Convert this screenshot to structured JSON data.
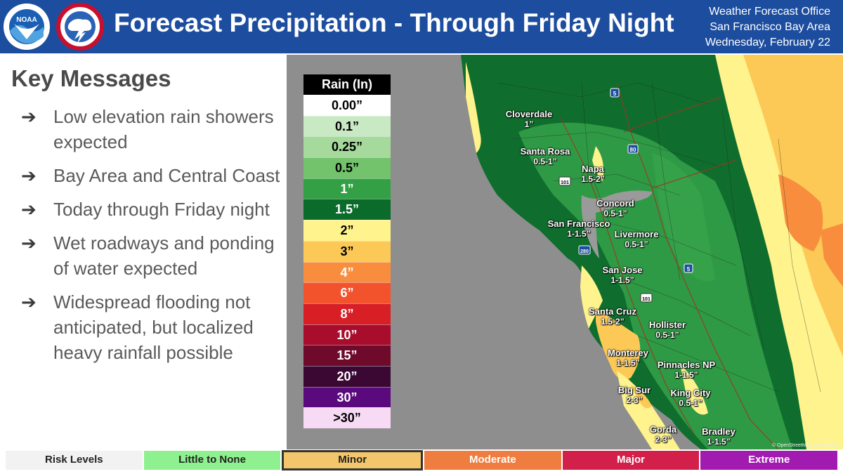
{
  "header": {
    "title": "Forecast Precipitation - Through Friday Night",
    "office_line1": "Weather Forecast Office",
    "office_line2": "San Francisco Bay Area",
    "date": "Wednesday, February 22",
    "background_color": "#1d4d9e",
    "logos": [
      "noaa-logo",
      "national-weather-service-logo"
    ]
  },
  "key_messages": {
    "title": "Key Messages",
    "bullet_icon": "right-arrow-icon",
    "items": [
      "Low elevation rain showers expected",
      "Bay Area and Central Coast",
      "Today through Friday night",
      "Wet roadways and ponding of water expected",
      "Widespread flooding not anticipated, but localized heavy rainfall possible"
    ]
  },
  "legend": {
    "title": "Rain (In)",
    "rows": [
      {
        "label": "0.00”",
        "color": "#ffffff",
        "text_color": "#000000"
      },
      {
        "label": "0.1”",
        "color": "#c9e8c4",
        "text_color": "#000000"
      },
      {
        "label": "0.25”",
        "color": "#a6d99c",
        "text_color": "#000000"
      },
      {
        "label": "0.5”",
        "color": "#73c26c",
        "text_color": "#000000"
      },
      {
        "label": "1”",
        "color": "#34a046",
        "text_color": "#ffffff"
      },
      {
        "label": "1.5”",
        "color": "#0b6b2b",
        "text_color": "#ffffff"
      },
      {
        "label": "2”",
        "color": "#fff38d",
        "text_color": "#000000"
      },
      {
        "label": "3”",
        "color": "#fcc957",
        "text_color": "#000000"
      },
      {
        "label": "4”",
        "color": "#f88e3d",
        "text_color": "#ffffff"
      },
      {
        "label": "6”",
        "color": "#f2532d",
        "text_color": "#ffffff"
      },
      {
        "label": "8”",
        "color": "#d81f26",
        "text_color": "#ffffff"
      },
      {
        "label": "10”",
        "color": "#a80d2c",
        "text_color": "#ffffff"
      },
      {
        "label": "15”",
        "color": "#6f0a2b",
        "text_color": "#ffffff"
      },
      {
        "label": "20”",
        "color": "#3a0833",
        "text_color": "#ffffff"
      },
      {
        "label": "30”",
        "color": "#5b0a7e",
        "text_color": "#ffffff"
      },
      {
        "label": ">30”",
        "color": "#f7daf4",
        "text_color": "#000000"
      }
    ]
  },
  "map": {
    "cities": [
      {
        "name": "Cloverdale",
        "amount": "1”"
      },
      {
        "name": "Santa Rosa",
        "amount": "0.5-1”"
      },
      {
        "name": "Napa",
        "amount": "1.5-2”"
      },
      {
        "name": "Concord",
        "amount": "0.5-1”"
      },
      {
        "name": "San Francisco",
        "amount": "1-1.5”"
      },
      {
        "name": "Livermore",
        "amount": "0.5-1”"
      },
      {
        "name": "San Jose",
        "amount": "1-1.5”"
      },
      {
        "name": "Santa Cruz",
        "amount": "1.5-2”"
      },
      {
        "name": "Hollister",
        "amount": "0.5-1”"
      },
      {
        "name": "Monterey",
        "amount": "1-1.5”"
      },
      {
        "name": "Pinnacles NP",
        "amount": "1-1.5”"
      },
      {
        "name": "Big Sur",
        "amount": "2-3”"
      },
      {
        "name": "King City",
        "amount": "0.5-1”"
      },
      {
        "name": "Gorda",
        "amount": "2-3”"
      },
      {
        "name": "Bradley",
        "amount": "1-1.5”"
      }
    ],
    "highway_shields": [
      "5",
      "80",
      "101",
      "280",
      "101",
      "5"
    ],
    "attribution": "© OpenStreetMap contributors"
  },
  "risk_levels": {
    "label": "Risk Levels",
    "selected": "Minor",
    "levels": [
      {
        "name": "Risk Levels",
        "color": "#f2f2f2"
      },
      {
        "name": "Little to None",
        "color": "#8ef08e"
      },
      {
        "name": "Minor",
        "color": "#f4c66b"
      },
      {
        "name": "Moderate",
        "color": "#ef7d3f"
      },
      {
        "name": "Major",
        "color": "#d2204b"
      },
      {
        "name": "Extreme",
        "color": "#a11bb0"
      }
    ]
  }
}
